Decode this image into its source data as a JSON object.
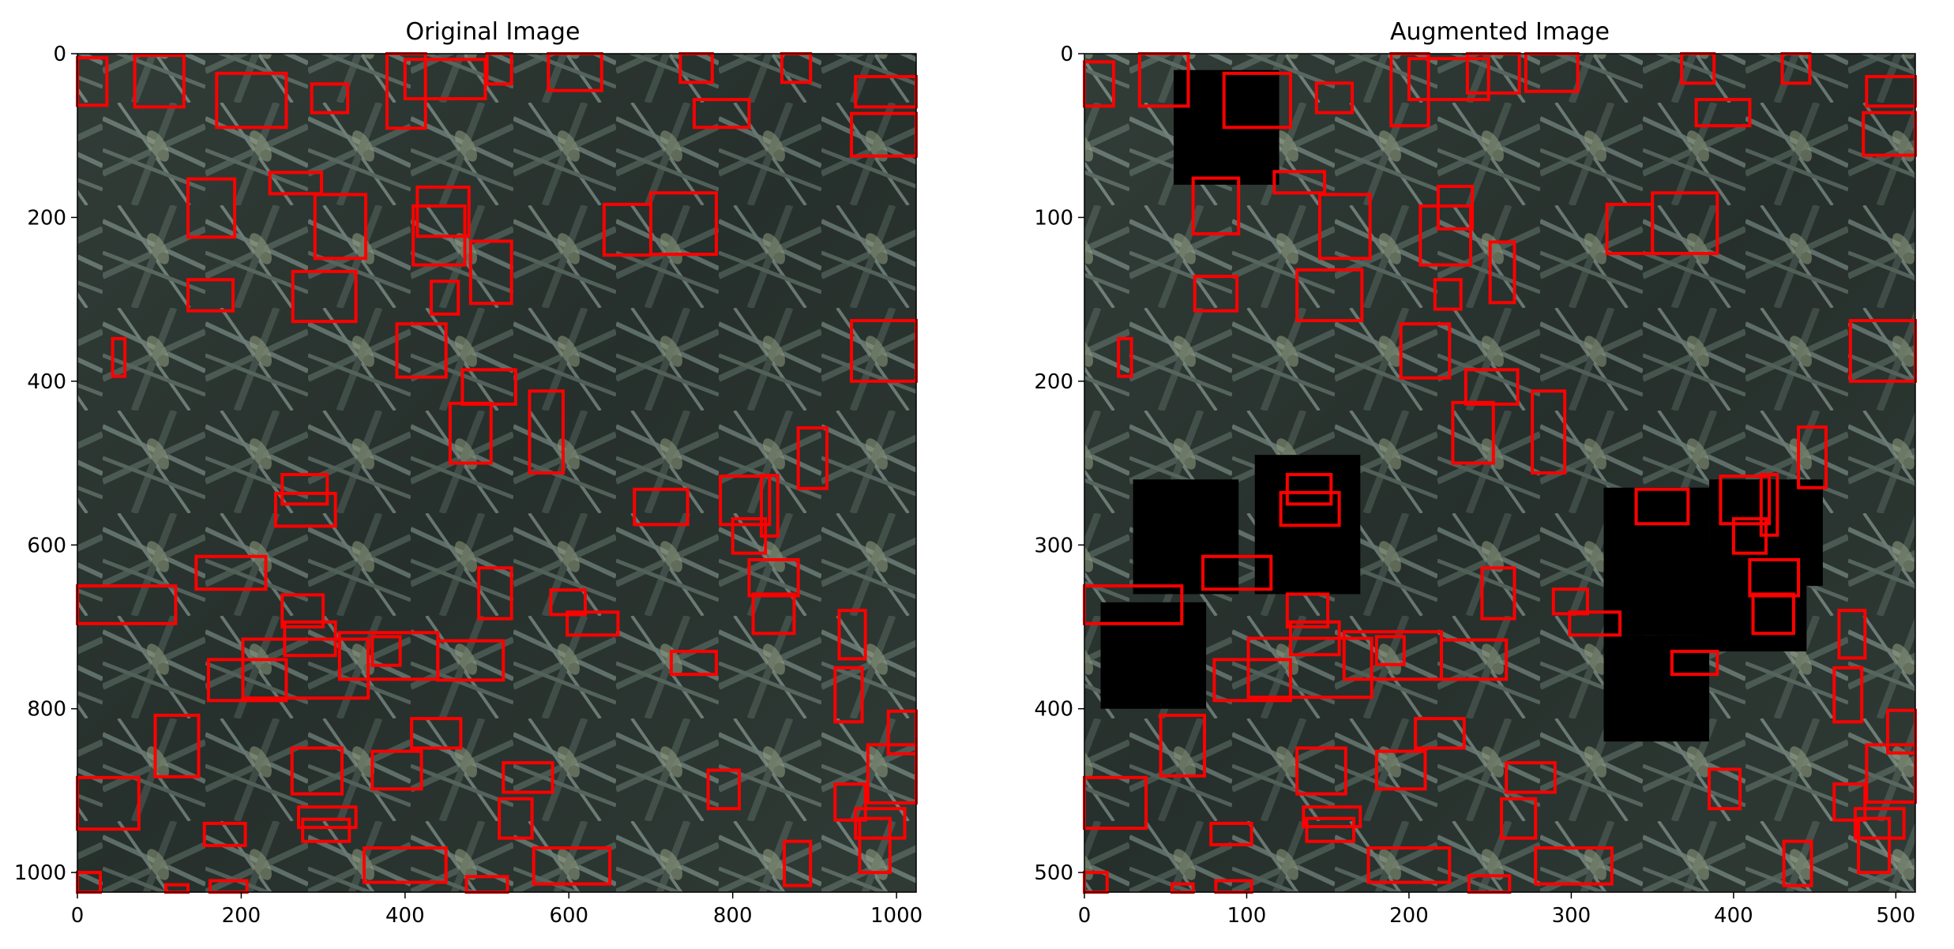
{
  "chart_data": [
    {
      "type": "image",
      "title": "Original Image",
      "xlim": [
        0,
        1024
      ],
      "ylim": [
        0,
        1024
      ],
      "xticks": [
        0,
        200,
        400,
        600,
        800,
        1000
      ],
      "yticks": [
        0,
        200,
        400,
        600,
        800,
        1000
      ],
      "box_color": "#ff0000",
      "boxes": [
        [
          0,
          5,
          36,
          63
        ],
        [
          70,
          2,
          130,
          65
        ],
        [
          170,
          24,
          255,
          90
        ],
        [
          286,
          37,
          330,
          72
        ],
        [
          378,
          0,
          425,
          91
        ],
        [
          400,
          7,
          498,
          55
        ],
        [
          500,
          0,
          530,
          37
        ],
        [
          575,
          0,
          640,
          45
        ],
        [
          736,
          0,
          775,
          35
        ],
        [
          860,
          0,
          895,
          35
        ],
        [
          950,
          28,
          1024,
          65
        ],
        [
          945,
          73,
          1024,
          125
        ],
        [
          753,
          56,
          820,
          90
        ],
        [
          235,
          145,
          298,
          171
        ],
        [
          135,
          153,
          192,
          224
        ],
        [
          290,
          172,
          352,
          250
        ],
        [
          415,
          163,
          478,
          223
        ],
        [
          410,
          186,
          473,
          258
        ],
        [
          643,
          184,
          700,
          246
        ],
        [
          700,
          170,
          780,
          245
        ],
        [
          135,
          276,
          190,
          314
        ],
        [
          263,
          266,
          340,
          327
        ],
        [
          480,
          229,
          530,
          305
        ],
        [
          432,
          278,
          465,
          318
        ],
        [
          390,
          330,
          450,
          395
        ],
        [
          945,
          326,
          1024,
          400
        ],
        [
          43,
          348,
          58,
          394
        ],
        [
          470,
          386,
          535,
          428
        ],
        [
          455,
          427,
          505,
          500
        ],
        [
          552,
          412,
          593,
          512
        ],
        [
          880,
          457,
          915,
          531
        ],
        [
          680,
          532,
          745,
          575
        ],
        [
          785,
          516,
          845,
          575
        ],
        [
          835,
          515,
          855,
          589
        ],
        [
          800,
          568,
          840,
          610
        ],
        [
          250,
          514,
          305,
          550
        ],
        [
          242,
          537,
          315,
          577
        ],
        [
          145,
          614,
          230,
          654
        ],
        [
          0,
          650,
          120,
          696
        ],
        [
          820,
          618,
          880,
          662
        ],
        [
          825,
          660,
          875,
          708
        ],
        [
          490,
          628,
          530,
          690
        ],
        [
          578,
          655,
          620,
          685
        ],
        [
          598,
          682,
          660,
          710
        ],
        [
          250,
          661,
          300,
          700
        ],
        [
          253,
          694,
          315,
          735
        ],
        [
          160,
          740,
          255,
          790
        ],
        [
          202,
          715,
          355,
          787
        ],
        [
          320,
          707,
          440,
          764
        ],
        [
          360,
          712,
          394,
          747
        ],
        [
          440,
          717,
          520,
          765
        ],
        [
          725,
          730,
          780,
          758
        ],
        [
          930,
          680,
          962,
          739
        ],
        [
          925,
          750,
          958,
          816
        ],
        [
          95,
          808,
          148,
          883
        ],
        [
          262,
          848,
          323,
          904
        ],
        [
          360,
          852,
          420,
          898
        ],
        [
          408,
          812,
          468,
          848
        ],
        [
          520,
          866,
          580,
          902
        ],
        [
          990,
          803,
          1024,
          855
        ],
        [
          965,
          844,
          1024,
          915
        ],
        [
          0,
          884,
          75,
          947
        ],
        [
          270,
          920,
          340,
          945
        ],
        [
          275,
          935,
          332,
          962
        ],
        [
          155,
          940,
          205,
          967
        ],
        [
          515,
          910,
          555,
          958
        ],
        [
          770,
          875,
          808,
          922
        ],
        [
          925,
          892,
          962,
          936
        ],
        [
          950,
          922,
          1010,
          958
        ],
        [
          955,
          934,
          992,
          1000
        ],
        [
          863,
          962,
          895,
          1016
        ],
        [
          350,
          970,
          450,
          1012
        ],
        [
          557,
          970,
          650,
          1014
        ],
        [
          0,
          1000,
          28,
          1024
        ],
        [
          108,
          1015,
          135,
          1024
        ],
        [
          162,
          1010,
          207,
          1024
        ],
        [
          475,
          1005,
          525,
          1024
        ]
      ]
    },
    {
      "type": "image",
      "title": "Augmented Image",
      "xlim": [
        0,
        512
      ],
      "ylim": [
        0,
        512
      ],
      "xticks": [
        0,
        100,
        200,
        300,
        400,
        500
      ],
      "yticks": [
        0,
        100,
        200,
        300,
        400,
        500
      ],
      "box_color": "#ff0000",
      "black_patches": [
        [
          55,
          10,
          120,
          80
        ],
        [
          30,
          260,
          95,
          330
        ],
        [
          105,
          245,
          170,
          330
        ],
        [
          10,
          335,
          75,
          400
        ],
        [
          320,
          265,
          385,
          355
        ],
        [
          385,
          260,
          455,
          325
        ],
        [
          380,
          300,
          445,
          365
        ],
        [
          320,
          355,
          385,
          420
        ]
      ],
      "boxes": [
        [
          0,
          5,
          18,
          32
        ],
        [
          34,
          0,
          64,
          32
        ],
        [
          86,
          12,
          127,
          45
        ],
        [
          143,
          18,
          165,
          36
        ],
        [
          189,
          0,
          212,
          44
        ],
        [
          200,
          3,
          249,
          28
        ],
        [
          236,
          0,
          268,
          24
        ],
        [
          272,
          0,
          304,
          23
        ],
        [
          368,
          0,
          388,
          18
        ],
        [
          430,
          0,
          447,
          18
        ],
        [
          482,
          14,
          512,
          32
        ],
        [
          480,
          36,
          512,
          62
        ],
        [
          377,
          28,
          410,
          44
        ],
        [
          117,
          72,
          148,
          85
        ],
        [
          67,
          76,
          95,
          110
        ],
        [
          145,
          86,
          176,
          125
        ],
        [
          218,
          81,
          239,
          107
        ],
        [
          207,
          93,
          238,
          129
        ],
        [
          322,
          92,
          350,
          122
        ],
        [
          350,
          85,
          390,
          122
        ],
        [
          68,
          136,
          94,
          157
        ],
        [
          131,
          132,
          171,
          163
        ],
        [
          250,
          115,
          265,
          152
        ],
        [
          216,
          138,
          232,
          156
        ],
        [
          195,
          165,
          225,
          198
        ],
        [
          472,
          163,
          512,
          200
        ],
        [
          21,
          174,
          29,
          197
        ],
        [
          235,
          193,
          267,
          214
        ],
        [
          227,
          213,
          252,
          250
        ],
        [
          276,
          206,
          296,
          256
        ],
        [
          440,
          228,
          457,
          265
        ],
        [
          340,
          266,
          372,
          287
        ],
        [
          392,
          258,
          422,
          287
        ],
        [
          417,
          257,
          427,
          294
        ],
        [
          400,
          284,
          420,
          305
        ],
        [
          125,
          257,
          152,
          275
        ],
        [
          121,
          268,
          157,
          288
        ],
        [
          73,
          307,
          115,
          327
        ],
        [
          0,
          325,
          60,
          348
        ],
        [
          410,
          309,
          440,
          331
        ],
        [
          412,
          330,
          437,
          354
        ],
        [
          245,
          314,
          265,
          345
        ],
        [
          289,
          327,
          310,
          342
        ],
        [
          299,
          341,
          330,
          355
        ],
        [
          125,
          330,
          150,
          350
        ],
        [
          127,
          347,
          157,
          367
        ],
        [
          80,
          370,
          127,
          395
        ],
        [
          101,
          357,
          177,
          393
        ],
        [
          160,
          353,
          220,
          382
        ],
        [
          180,
          356,
          197,
          373
        ],
        [
          220,
          358,
          260,
          382
        ],
        [
          362,
          365,
          390,
          379
        ],
        [
          465,
          340,
          481,
          369
        ],
        [
          462,
          375,
          479,
          408
        ],
        [
          47,
          404,
          74,
          441
        ],
        [
          131,
          424,
          161,
          452
        ],
        [
          180,
          426,
          210,
          449
        ],
        [
          204,
          406,
          234,
          424
        ],
        [
          260,
          433,
          290,
          451
        ],
        [
          495,
          401,
          512,
          427
        ],
        [
          482,
          422,
          512,
          457
        ],
        [
          0,
          442,
          38,
          473
        ],
        [
          135,
          460,
          170,
          472
        ],
        [
          137,
          467,
          166,
          481
        ],
        [
          78,
          470,
          103,
          483
        ],
        [
          257,
          455,
          278,
          479
        ],
        [
          385,
          437,
          404,
          461
        ],
        [
          462,
          446,
          481,
          468
        ],
        [
          475,
          461,
          505,
          479
        ],
        [
          477,
          467,
          496,
          500
        ],
        [
          431,
          481,
          448,
          508
        ],
        [
          175,
          485,
          225,
          506
        ],
        [
          278,
          485,
          325,
          507
        ],
        [
          0,
          500,
          14,
          512
        ],
        [
          54,
          507,
          67,
          512
        ],
        [
          81,
          505,
          103,
          512
        ],
        [
          237,
          502,
          262,
          512
        ]
      ]
    }
  ]
}
